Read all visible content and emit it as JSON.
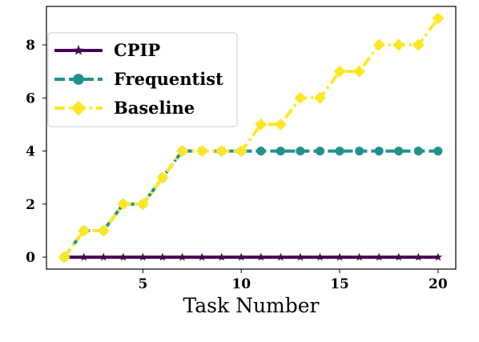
{
  "chart_data": {
    "type": "line",
    "title": "",
    "xlabel": "Task Number",
    "ylabel": "",
    "xlim": [
      0.1,
      20.9
    ],
    "ylim": [
      -0.45,
      9.45
    ],
    "x_ticks": [
      5,
      10,
      15,
      20
    ],
    "y_ticks": [
      0,
      2,
      4,
      6,
      8
    ],
    "grid": false,
    "legend": "top-left",
    "x": [
      1,
      2,
      3,
      4,
      5,
      6,
      7,
      8,
      9,
      10,
      11,
      12,
      13,
      14,
      15,
      16,
      17,
      18,
      19,
      20
    ],
    "series": [
      {
        "name": "CPIP",
        "color": "#440154",
        "line_style": "solid",
        "marker": "star",
        "values": [
          0,
          0,
          0,
          0,
          0,
          0,
          0,
          0,
          0,
          0,
          0,
          0,
          0,
          0,
          0,
          0,
          0,
          0,
          0,
          0
        ]
      },
      {
        "name": "Frequentist",
        "color": "#21918c",
        "line_style": "dashed",
        "marker": "circle",
        "values": [
          0,
          1,
          1,
          2,
          2,
          3,
          4,
          4,
          4,
          4,
          4,
          4,
          4,
          4,
          4,
          4,
          4,
          4,
          4,
          4
        ]
      },
      {
        "name": "Baseline",
        "color": "#fde725",
        "line_style": "dashdot",
        "marker": "diamond",
        "values": [
          0,
          1,
          1,
          2,
          2,
          3,
          4,
          4,
          4,
          4,
          5,
          5,
          6,
          6,
          7,
          7,
          8,
          8,
          8,
          9
        ]
      }
    ]
  }
}
